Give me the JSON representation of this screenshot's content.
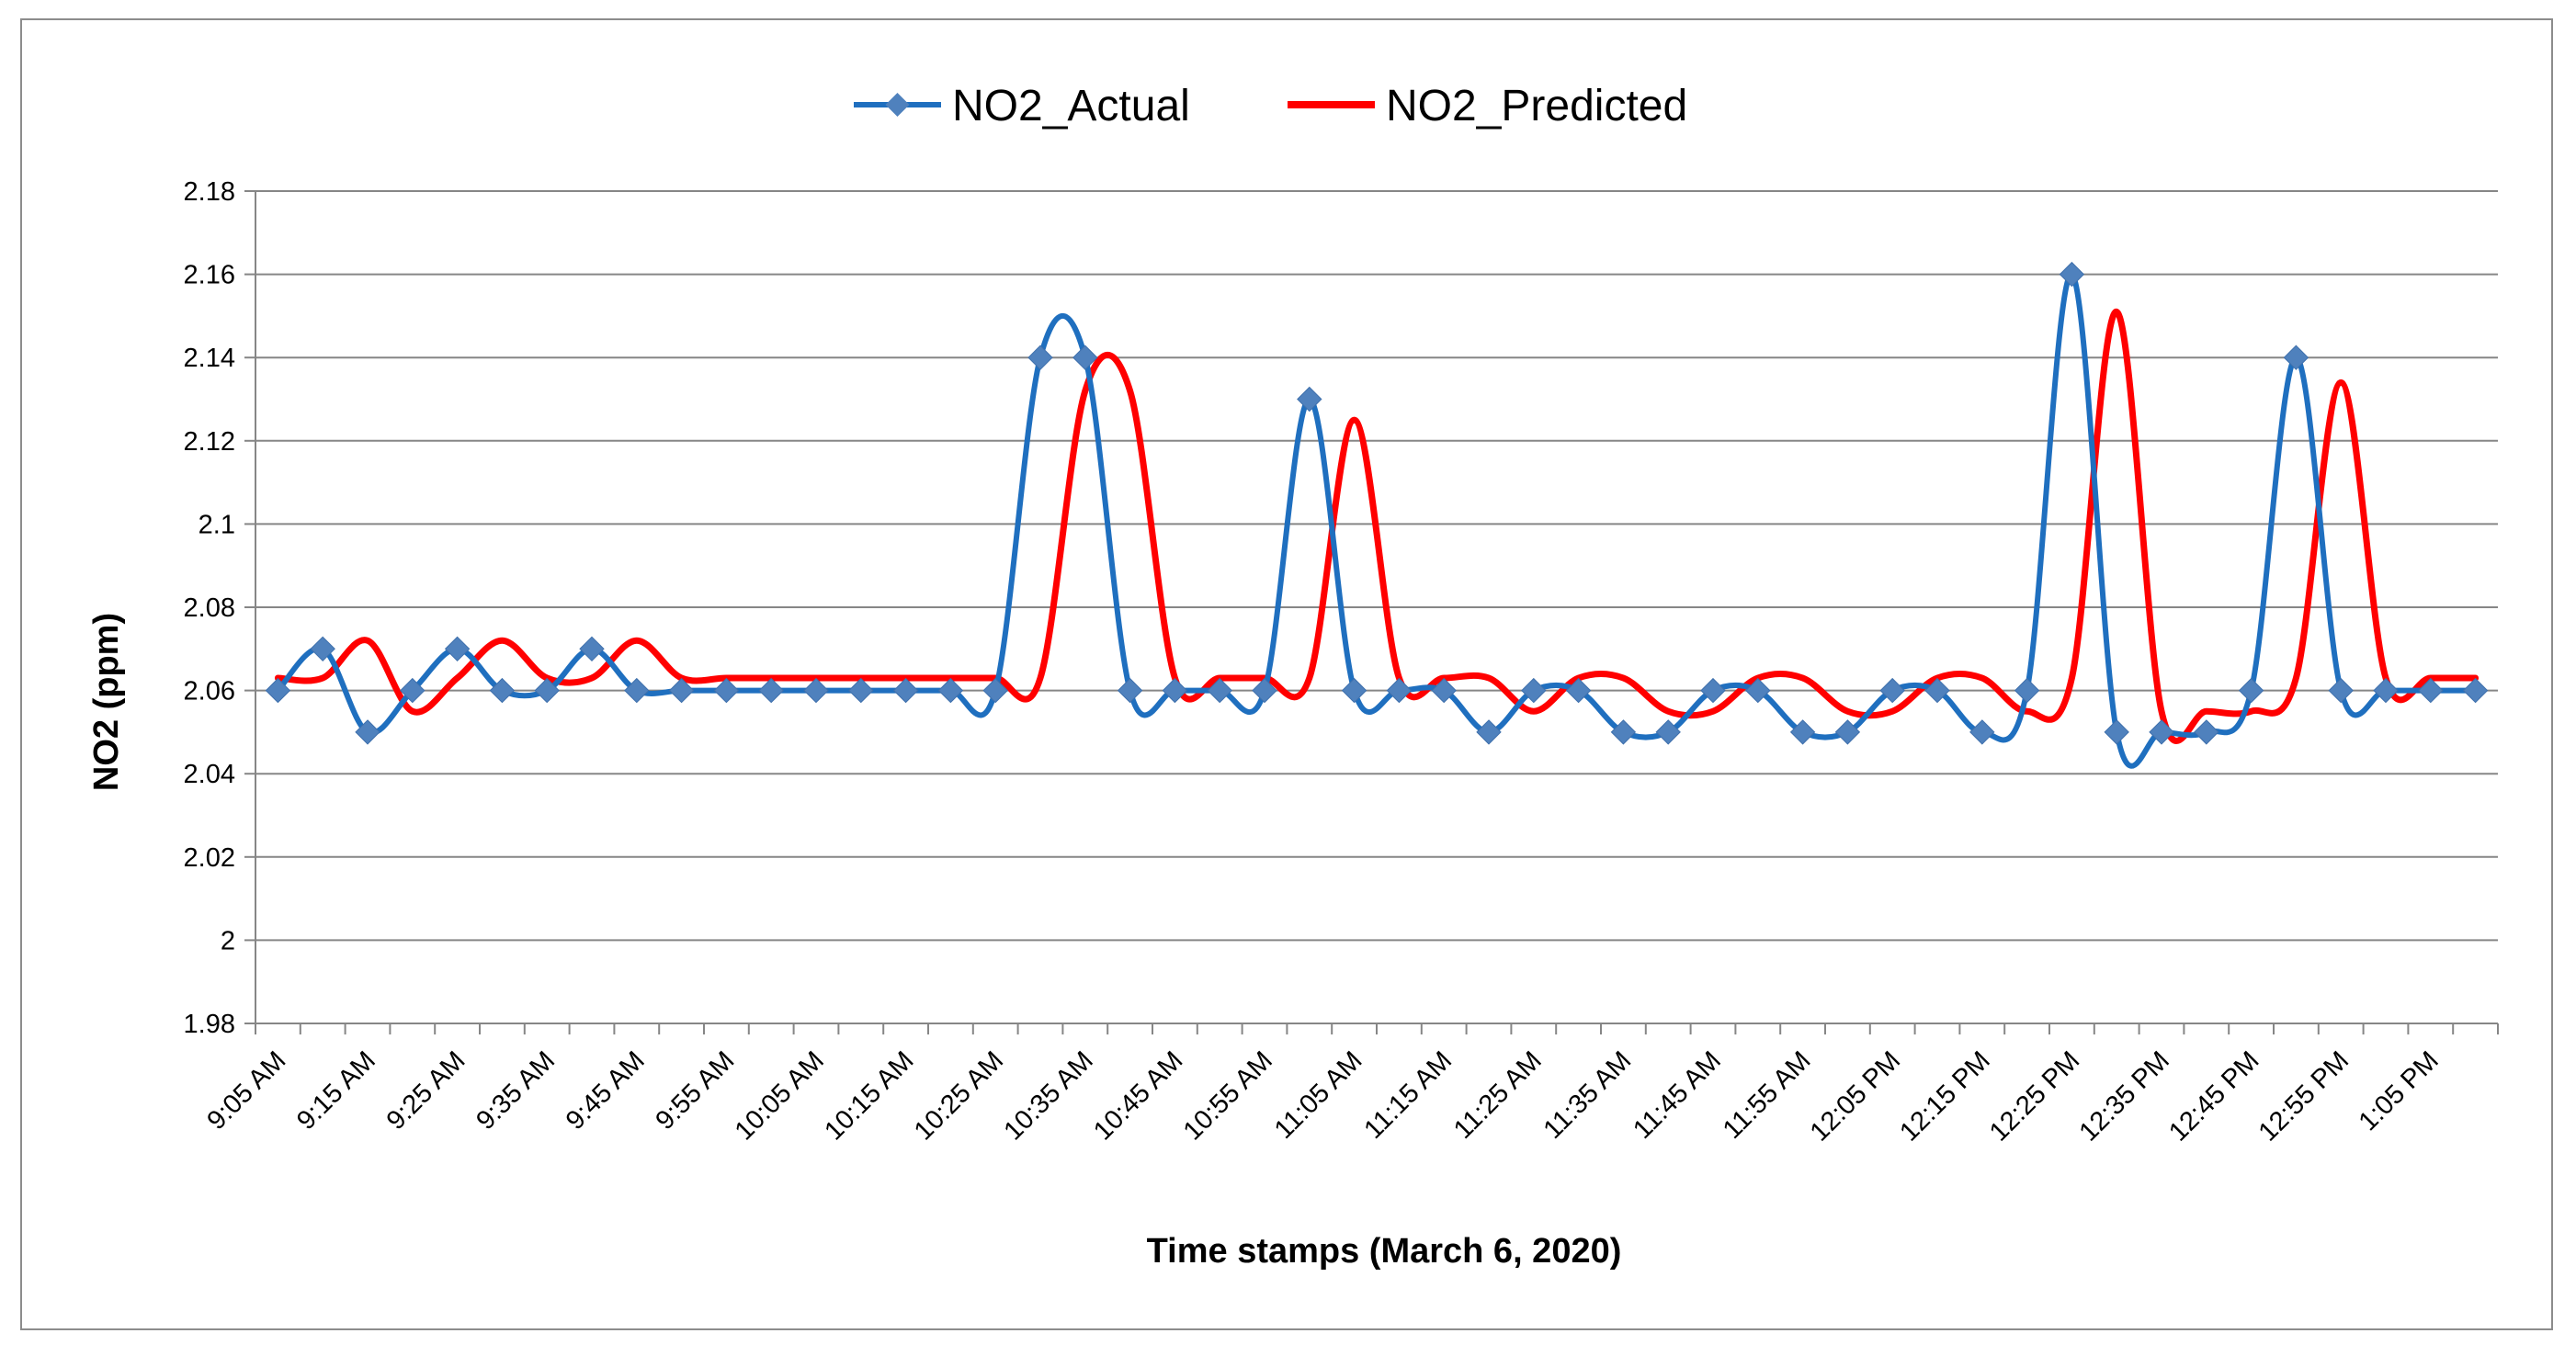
{
  "chart_data": {
    "type": "line",
    "title": "",
    "xlabel": "Time stamps (March 6, 2020)",
    "ylabel": "NO2 (ppm)",
    "ylim": [
      1.98,
      2.18
    ],
    "ytick_step": 0.02,
    "yticks": [
      "1.98",
      "2",
      "2.02",
      "2.04",
      "2.06",
      "2.08",
      "2.1",
      "2.12",
      "2.14",
      "2.16",
      "2.18"
    ],
    "grid": true,
    "legend_position": "top-center",
    "x_step_minutes": 5,
    "x_start": "9:05 AM",
    "x_label_every": 2,
    "x_tick_labels": [
      "9:05 AM",
      "9:15 AM",
      "9:25 AM",
      "9:35 AM",
      "9:45 AM",
      "9:55 AM",
      "10:05 AM",
      "10:15 AM",
      "10:25 AM",
      "10:35 AM",
      "10:45 AM",
      "10:55 AM",
      "11:05 AM",
      "11:15 AM",
      "11:25 AM",
      "11:35 AM",
      "11:45 AM",
      "11:55 AM",
      "12:05 PM",
      "12:15 PM",
      "12:25 PM",
      "12:35 PM",
      "12:45 PM",
      "12:55 PM",
      "1:05 PM"
    ],
    "series": [
      {
        "name": "NO2_Actual",
        "color": "#1f6fbf",
        "marker": "diamond",
        "values": [
          2.06,
          2.07,
          2.05,
          2.06,
          2.07,
          2.06,
          2.06,
          2.07,
          2.06,
          2.06,
          2.06,
          2.06,
          2.06,
          2.06,
          2.06,
          2.06,
          2.06,
          2.14,
          2.14,
          2.06,
          2.06,
          2.06,
          2.06,
          2.13,
          2.06,
          2.06,
          2.06,
          2.05,
          2.06,
          2.06,
          2.05,
          2.05,
          2.06,
          2.06,
          2.05,
          2.05,
          2.06,
          2.06,
          2.05,
          2.06,
          2.16,
          2.05,
          2.05,
          2.05,
          2.06,
          2.14,
          2.06,
          2.06,
          2.06,
          2.06
        ]
      },
      {
        "name": "NO2_Predicted",
        "color": "#ff0000",
        "marker": "none",
        "values": [
          2.063,
          2.063,
          2.072,
          2.055,
          2.063,
          2.072,
          2.063,
          2.063,
          2.072,
          2.063,
          2.063,
          2.063,
          2.063,
          2.063,
          2.063,
          2.063,
          2.063,
          2.063,
          2.132,
          2.132,
          2.063,
          2.063,
          2.063,
          2.063,
          2.125,
          2.063,
          2.063,
          2.063,
          2.055,
          2.063,
          2.063,
          2.055,
          2.055,
          2.063,
          2.063,
          2.055,
          2.055,
          2.063,
          2.063,
          2.055,
          2.063,
          2.151,
          2.055,
          2.055,
          2.055,
          2.063,
          2.134,
          2.063,
          2.063,
          2.063
        ]
      }
    ]
  }
}
